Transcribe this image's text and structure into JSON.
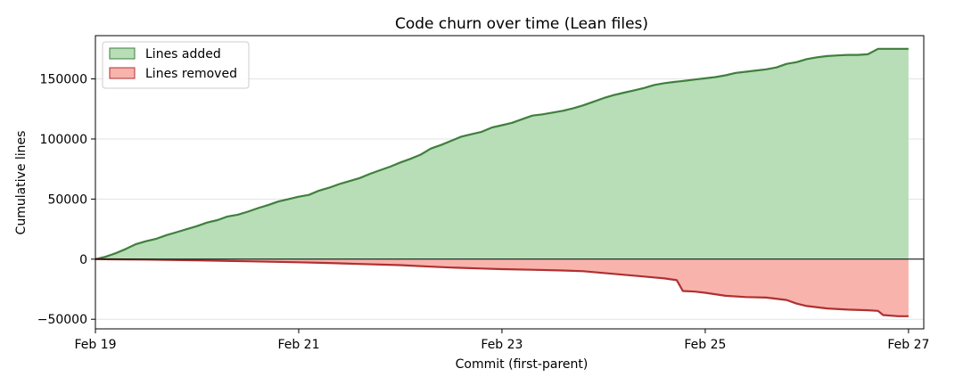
{
  "chart_data": {
    "type": "area",
    "title": "Code churn over time (Lean files)",
    "xlabel": "Commit (first-parent)",
    "ylabel": "Cumulative lines",
    "x_ticks": [
      "Feb 19",
      "Feb 21",
      "Feb 23",
      "Feb 25",
      "Feb 27"
    ],
    "x_tick_days": [
      19,
      21,
      23,
      25,
      27
    ],
    "xlim": [
      19,
      27.15
    ],
    "y_ticks": [
      -50000,
      0,
      50000,
      100000,
      150000
    ],
    "y_tick_labels": [
      "−50000",
      "0",
      "50000",
      "100000",
      "150000"
    ],
    "ylim": [
      -58000,
      186000
    ],
    "grid": "y",
    "legend": "upper left",
    "series": [
      {
        "name": "Lines added",
        "fill": "#b7deb6",
        "line": "#3f7f3d",
        "points": [
          [
            19.0,
            0
          ],
          [
            19.1,
            2000
          ],
          [
            19.2,
            5000
          ],
          [
            19.3,
            8500
          ],
          [
            19.4,
            12500
          ],
          [
            19.5,
            15000
          ],
          [
            19.6,
            17000
          ],
          [
            19.7,
            20000
          ],
          [
            19.8,
            22500
          ],
          [
            19.9,
            25000
          ],
          [
            20.0,
            27500
          ],
          [
            20.1,
            30500
          ],
          [
            20.2,
            32500
          ],
          [
            20.3,
            35500
          ],
          [
            20.4,
            37000
          ],
          [
            20.5,
            39500
          ],
          [
            20.6,
            42500
          ],
          [
            20.7,
            45000
          ],
          [
            20.8,
            48000
          ],
          [
            20.9,
            50000
          ],
          [
            21.0,
            52000
          ],
          [
            21.1,
            53500
          ],
          [
            21.2,
            57000
          ],
          [
            21.3,
            59500
          ],
          [
            21.4,
            62500
          ],
          [
            21.5,
            65000
          ],
          [
            21.6,
            67500
          ],
          [
            21.7,
            71000
          ],
          [
            21.8,
            74000
          ],
          [
            21.9,
            77000
          ],
          [
            22.0,
            80500
          ],
          [
            22.1,
            83500
          ],
          [
            22.2,
            87000
          ],
          [
            22.3,
            92000
          ],
          [
            22.4,
            95000
          ],
          [
            22.5,
            98500
          ],
          [
            22.6,
            102000
          ],
          [
            22.7,
            104000
          ],
          [
            22.8,
            106000
          ],
          [
            22.9,
            109500
          ],
          [
            23.0,
            111500
          ],
          [
            23.1,
            113500
          ],
          [
            23.2,
            116500
          ],
          [
            23.3,
            119500
          ],
          [
            23.4,
            120500
          ],
          [
            23.5,
            122000
          ],
          [
            23.6,
            123500
          ],
          [
            23.7,
            125500
          ],
          [
            23.8,
            128000
          ],
          [
            23.9,
            131000
          ],
          [
            24.0,
            134000
          ],
          [
            24.1,
            136500
          ],
          [
            24.2,
            138500
          ],
          [
            24.3,
            140500
          ],
          [
            24.4,
            142500
          ],
          [
            24.5,
            145000
          ],
          [
            24.6,
            146500
          ],
          [
            24.7,
            147500
          ],
          [
            24.8,
            148500
          ],
          [
            24.9,
            149500
          ],
          [
            25.0,
            150500
          ],
          [
            25.1,
            151500
          ],
          [
            25.2,
            153000
          ],
          [
            25.3,
            155000
          ],
          [
            25.4,
            156000
          ],
          [
            25.5,
            157000
          ],
          [
            25.6,
            158000
          ],
          [
            25.7,
            159500
          ],
          [
            25.8,
            162500
          ],
          [
            25.9,
            164000
          ],
          [
            26.0,
            166500
          ],
          [
            26.1,
            168000
          ],
          [
            26.2,
            169000
          ],
          [
            26.3,
            169500
          ],
          [
            26.4,
            170000
          ],
          [
            26.5,
            170000
          ],
          [
            26.6,
            170500
          ],
          [
            26.7,
            175000
          ],
          [
            26.8,
            175000
          ],
          [
            27.0,
            175000
          ]
        ]
      },
      {
        "name": "Lines removed",
        "fill": "#f8b3ad",
        "line": "#b03030",
        "points": [
          [
            19.0,
            0
          ],
          [
            19.5,
            -400
          ],
          [
            20.0,
            -1000
          ],
          [
            20.5,
            -1800
          ],
          [
            21.0,
            -2600
          ],
          [
            21.3,
            -3200
          ],
          [
            21.6,
            -4000
          ],
          [
            22.0,
            -5000
          ],
          [
            22.3,
            -6200
          ],
          [
            22.5,
            -7000
          ],
          [
            22.8,
            -7800
          ],
          [
            23.0,
            -8300
          ],
          [
            23.3,
            -8800
          ],
          [
            23.6,
            -9400
          ],
          [
            23.8,
            -10000
          ],
          [
            24.0,
            -11500
          ],
          [
            24.2,
            -13000
          ],
          [
            24.4,
            -14500
          ],
          [
            24.6,
            -16000
          ],
          [
            24.72,
            -17500
          ],
          [
            24.78,
            -26500
          ],
          [
            24.9,
            -27000
          ],
          [
            25.0,
            -28000
          ],
          [
            25.2,
            -30500
          ],
          [
            25.4,
            -31500
          ],
          [
            25.6,
            -32000
          ],
          [
            25.8,
            -34000
          ],
          [
            25.9,
            -37000
          ],
          [
            26.0,
            -39000
          ],
          [
            26.2,
            -41000
          ],
          [
            26.4,
            -42000
          ],
          [
            26.6,
            -42500
          ],
          [
            26.7,
            -43000
          ],
          [
            26.75,
            -46500
          ],
          [
            26.9,
            -47500
          ],
          [
            27.0,
            -47500
          ]
        ]
      }
    ]
  }
}
